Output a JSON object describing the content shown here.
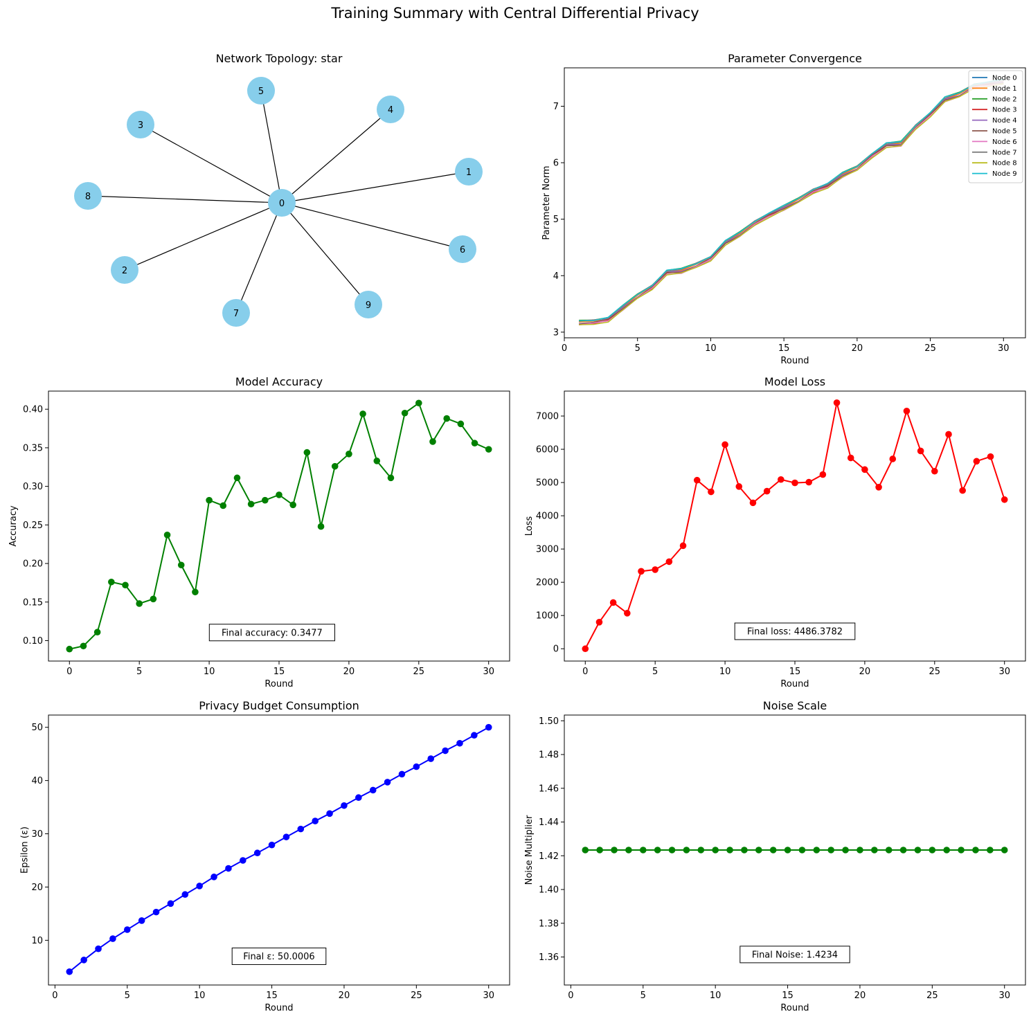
{
  "figure": {
    "suptitle": "Training Summary with Central Differential Privacy"
  },
  "chart_data": [
    {
      "type": "network",
      "title": "Network Topology: star",
      "nodes": [
        "0",
        "1",
        "2",
        "3",
        "4",
        "5",
        "6",
        "7",
        "8",
        "9"
      ],
      "edges": [
        [
          "0",
          "1"
        ],
        [
          "0",
          "2"
        ],
        [
          "0",
          "3"
        ],
        [
          "0",
          "4"
        ],
        [
          "0",
          "5"
        ],
        [
          "0",
          "6"
        ],
        [
          "0",
          "7"
        ],
        [
          "0",
          "8"
        ],
        [
          "0",
          "9"
        ]
      ],
      "node_color": "#87ceeb"
    },
    {
      "type": "line",
      "title": "Parameter Convergence",
      "xlabel": "Round",
      "ylabel": "Parameter Norm",
      "xlim": [
        0,
        31.5
      ],
      "ylim": [
        2.9,
        7.68
      ],
      "xticks": [
        0,
        5,
        10,
        15,
        20,
        25,
        30
      ],
      "yticks": [
        3,
        4,
        5,
        6,
        7
      ],
      "legend": "top-right",
      "x": [
        1,
        2,
        3,
        4,
        5,
        6,
        7,
        8,
        9,
        10,
        11,
        12,
        13,
        14,
        15,
        16,
        17,
        18,
        19,
        20,
        21,
        22,
        23,
        24,
        25,
        26,
        27,
        28,
        29,
        30
      ],
      "base": [
        3.18,
        3.2,
        3.25,
        3.45,
        3.65,
        3.82,
        4.08,
        4.1,
        4.2,
        4.33,
        4.6,
        4.75,
        4.95,
        5.1,
        5.22,
        5.35,
        5.52,
        5.62,
        5.8,
        5.92,
        6.15,
        6.33,
        6.35,
        6.65,
        6.88,
        7.14,
        7.22,
        7.38,
        7.42,
        7.45
      ],
      "series": [
        {
          "name": "Node 0",
          "color": "#1f77b4",
          "offset": 0.0
        },
        {
          "name": "Node 1",
          "color": "#ff7f0e",
          "offset": -0.01
        },
        {
          "name": "Node 2",
          "color": "#2ca02c",
          "offset": 0.02
        },
        {
          "name": "Node 3",
          "color": "#d62728",
          "offset": -0.04
        },
        {
          "name": "Node 4",
          "color": "#9467bd",
          "offset": -0.02
        },
        {
          "name": "Node 5",
          "color": "#8c564b",
          "offset": -0.03
        },
        {
          "name": "Node 6",
          "color": "#e377c2",
          "offset": -0.05
        },
        {
          "name": "Node 7",
          "color": "#7f7f7f",
          "offset": 0.01
        },
        {
          "name": "Node 8",
          "color": "#bcbd22",
          "offset": -0.06
        },
        {
          "name": "Node 9",
          "color": "#17becf",
          "offset": 0.015
        }
      ]
    },
    {
      "type": "line",
      "title": "Model Accuracy",
      "xlabel": "Round",
      "ylabel": "Accuracy",
      "xlim": [
        -1.5,
        31.5
      ],
      "ylim": [
        0.0735,
        0.4235
      ],
      "xticks": [
        0,
        5,
        10,
        15,
        20,
        25,
        30
      ],
      "yticks": [
        0.1,
        0.15,
        0.2,
        0.25,
        0.3,
        0.35,
        0.4
      ],
      "ytick_labels": [
        "0.10",
        "0.15",
        "0.20",
        "0.25",
        "0.30",
        "0.35",
        "0.40"
      ],
      "color": "#008000",
      "x": [
        0,
        1,
        2,
        3,
        4,
        5,
        6,
        7,
        8,
        9,
        10,
        11,
        12,
        13,
        14,
        15,
        16,
        17,
        18,
        19,
        20,
        21,
        22,
        23,
        24,
        25,
        26,
        27,
        28,
        29,
        30
      ],
      "values": [
        0.089,
        0.093,
        0.111,
        0.176,
        0.172,
        0.148,
        0.154,
        0.237,
        0.198,
        0.163,
        0.282,
        0.275,
        0.311,
        0.277,
        0.282,
        0.289,
        0.276,
        0.344,
        0.248,
        0.326,
        0.342,
        0.394,
        0.333,
        0.311,
        0.395,
        0.408,
        0.358,
        0.388,
        0.381,
        0.356,
        0.348
      ],
      "annotation": "Final accuracy: 0.3477",
      "annotation_pos": [
        14.5,
        0.1105
      ]
    },
    {
      "type": "line",
      "title": "Model Loss",
      "xlabel": "Round",
      "ylabel": "Loss",
      "xlim": [
        -1.5,
        31.5
      ],
      "ylim": [
        -370,
        7750
      ],
      "xticks": [
        0,
        5,
        10,
        15,
        20,
        25,
        30
      ],
      "yticks": [
        0,
        1000,
        2000,
        3000,
        4000,
        5000,
        6000,
        7000
      ],
      "color": "#ff0000",
      "x": [
        0,
        1,
        2,
        3,
        4,
        5,
        6,
        7,
        8,
        9,
        10,
        11,
        12,
        13,
        14,
        15,
        16,
        17,
        18,
        19,
        20,
        21,
        22,
        23,
        24,
        25,
        26,
        27,
        28,
        29,
        30
      ],
      "values": [
        0,
        800,
        1390,
        1070,
        2330,
        2380,
        2620,
        3100,
        5070,
        4720,
        6140,
        4880,
        4390,
        4740,
        5090,
        4990,
        5010,
        5240,
        7400,
        5740,
        5390,
        4860,
        5710,
        7150,
        5950,
        5340,
        6450,
        4760,
        5640,
        5780,
        4486
      ],
      "annotation": "Final loss: 4486.3782",
      "annotation_pos": [
        15,
        525
      ]
    },
    {
      "type": "line",
      "title": "Privacy Budget Consumption",
      "xlabel": "Round",
      "ylabel": "Epsilon (ε)",
      "xlim": [
        -0.45,
        31.45
      ],
      "ylim": [
        1.6,
        52.3
      ],
      "xticks": [
        0,
        5,
        10,
        15,
        20,
        25,
        30
      ],
      "yticks": [
        10,
        20,
        30,
        40,
        50
      ],
      "color": "#0000ff",
      "x": [
        1,
        2,
        3,
        4,
        5,
        6,
        7,
        8,
        9,
        10,
        11,
        12,
        13,
        14,
        15,
        16,
        17,
        18,
        19,
        20,
        21,
        22,
        23,
        24,
        25,
        26,
        27,
        28,
        29,
        30
      ],
      "values": [
        4.1,
        6.3,
        8.4,
        10.3,
        12.0,
        13.7,
        15.3,
        16.9,
        18.6,
        20.2,
        21.9,
        23.5,
        25.0,
        26.4,
        27.9,
        29.4,
        30.9,
        32.4,
        33.8,
        35.3,
        36.8,
        38.2,
        39.7,
        41.2,
        42.6,
        44.1,
        45.6,
        47.0,
        48.5,
        50.0
      ],
      "annotation": "Final ε: 50.0006",
      "annotation_pos": [
        15.5,
        7.0
      ]
    },
    {
      "type": "line",
      "title": "Noise Scale",
      "xlabel": "Round",
      "ylabel": "Noise Multiplier",
      "xlim": [
        -0.45,
        31.45
      ],
      "ylim": [
        1.3434,
        1.5034
      ],
      "xticks": [
        0,
        5,
        10,
        15,
        20,
        25,
        30
      ],
      "yticks": [
        1.36,
        1.38,
        1.4,
        1.42,
        1.44,
        1.46,
        1.48,
        1.5
      ],
      "ytick_labels": [
        "1.36",
        "1.38",
        "1.40",
        "1.42",
        "1.44",
        "1.46",
        "1.48",
        "1.50"
      ],
      "color": "#008000",
      "x": [
        1,
        2,
        3,
        4,
        5,
        6,
        7,
        8,
        9,
        10,
        11,
        12,
        13,
        14,
        15,
        16,
        17,
        18,
        19,
        20,
        21,
        22,
        23,
        24,
        25,
        26,
        27,
        28,
        29,
        30
      ],
      "values": [
        1.4234,
        1.4234,
        1.4234,
        1.4234,
        1.4234,
        1.4234,
        1.4234,
        1.4234,
        1.4234,
        1.4234,
        1.4234,
        1.4234,
        1.4234,
        1.4234,
        1.4234,
        1.4234,
        1.4234,
        1.4234,
        1.4234,
        1.4234,
        1.4234,
        1.4234,
        1.4234,
        1.4234,
        1.4234,
        1.4234,
        1.4234,
        1.4234,
        1.4234,
        1.4234
      ],
      "annotation": "Final Noise: 1.4234",
      "annotation_pos": [
        15.5,
        1.3615
      ]
    }
  ]
}
